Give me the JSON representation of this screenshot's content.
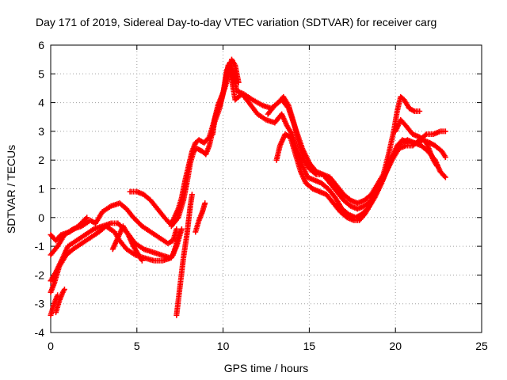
{
  "chart_data": {
    "type": "scatter",
    "title": "Day 171 of 2019, Sidereal Day-to-day VTEC variation (SDTVAR) for receiver carg",
    "xlabel": "GPS time / hours",
    "ylabel": "SDTVAR / TECUs",
    "xlim": [
      0,
      25
    ],
    "ylim": [
      -4,
      6
    ],
    "xticks": [
      0,
      5,
      10,
      15,
      20,
      25
    ],
    "yticks": [
      -4,
      -3,
      -2,
      -1,
      0,
      1,
      2,
      3,
      4,
      5,
      6
    ],
    "grid": true,
    "marker": "+",
    "color": "#ff0000",
    "series": [
      {
        "name": "track-1",
        "points": [
          [
            0.0,
            -1.3
          ],
          [
            0.4,
            -1.0
          ],
          [
            0.8,
            -0.6
          ],
          [
            1.3,
            -0.4
          ],
          [
            1.8,
            -0.3
          ],
          [
            2.3,
            -0.1
          ],
          [
            2.6,
            -0.2
          ],
          [
            3.0,
            0.2
          ],
          [
            3.5,
            0.4
          ],
          [
            4.0,
            0.5
          ],
          [
            4.4,
            0.3
          ],
          [
            4.8,
            0.0
          ],
          [
            5.3,
            -0.3
          ],
          [
            5.8,
            -0.5
          ],
          [
            6.3,
            -0.7
          ],
          [
            6.8,
            -0.9
          ],
          [
            7.1,
            -0.8
          ],
          [
            7.3,
            -0.4
          ]
        ]
      },
      {
        "name": "track-2",
        "points": [
          [
            0.0,
            -2.2
          ],
          [
            0.3,
            -1.9
          ],
          [
            0.7,
            -1.4
          ],
          [
            1.0,
            -1.0
          ],
          [
            1.5,
            -0.8
          ],
          [
            2.0,
            -0.6
          ],
          [
            2.5,
            -0.4
          ],
          [
            3.0,
            -0.3
          ],
          [
            3.5,
            -0.2
          ],
          [
            3.9,
            -0.2
          ],
          [
            4.4,
            -0.5
          ],
          [
            4.9,
            -0.9
          ],
          [
            5.4,
            -1.1
          ],
          [
            5.9,
            -1.2
          ],
          [
            6.4,
            -1.3
          ],
          [
            6.9,
            -1.4
          ],
          [
            7.1,
            -1.3
          ],
          [
            7.3,
            -0.9
          ],
          [
            7.5,
            -0.5
          ]
        ]
      },
      {
        "name": "track-3",
        "points": [
          [
            0.0,
            -2.6
          ],
          [
            0.2,
            -2.3
          ],
          [
            0.5,
            -1.7
          ],
          [
            0.9,
            -1.3
          ],
          [
            1.3,
            -1.1
          ],
          [
            1.8,
            -0.9
          ],
          [
            2.3,
            -0.7
          ],
          [
            2.8,
            -0.5
          ],
          [
            3.2,
            -0.3
          ],
          [
            3.7,
            -0.5
          ],
          [
            4.0,
            -0.8
          ],
          [
            4.4,
            -1.1
          ],
          [
            4.9,
            -1.3
          ],
          [
            5.4,
            -1.4
          ],
          [
            6.0,
            -1.5
          ],
          [
            6.5,
            -1.5
          ],
          [
            7.0,
            -1.4
          ],
          [
            7.3,
            -1.0
          ],
          [
            7.6,
            -0.4
          ]
        ]
      },
      {
        "name": "track-4",
        "points": [
          [
            0.3,
            -3.3
          ],
          [
            0.5,
            -2.9
          ],
          [
            0.7,
            -2.6
          ],
          [
            0.8,
            -2.5
          ]
        ]
      },
      {
        "name": "track-5",
        "points": [
          [
            0.0,
            -3.4
          ],
          [
            0.2,
            -3.0
          ],
          [
            0.4,
            -2.7
          ]
        ]
      },
      {
        "name": "track-6",
        "points": [
          [
            0.0,
            -0.6
          ],
          [
            0.3,
            -0.8
          ],
          [
            0.6,
            -0.6
          ],
          [
            1.1,
            -0.5
          ],
          [
            1.6,
            -0.3
          ],
          [
            2.1,
            0.0
          ]
        ]
      },
      {
        "name": "track-7",
        "points": [
          [
            3.6,
            -1.1
          ],
          [
            3.9,
            -0.7
          ],
          [
            4.2,
            -0.3
          ],
          [
            4.5,
            -0.6
          ],
          [
            4.8,
            -1.0
          ],
          [
            5.1,
            -1.3
          ],
          [
            5.3,
            -1.5
          ]
        ]
      },
      {
        "name": "track-8",
        "points": [
          [
            4.6,
            0.9
          ],
          [
            5.0,
            0.9
          ],
          [
            5.4,
            0.8
          ],
          [
            5.8,
            0.6
          ],
          [
            6.2,
            0.3
          ],
          [
            6.6,
            0.0
          ],
          [
            6.9,
            -0.2
          ],
          [
            7.1,
            -0.1
          ],
          [
            7.4,
            0.3
          ],
          [
            7.6,
            0.7
          ],
          [
            7.8,
            1.3
          ],
          [
            8.0,
            1.8
          ],
          [
            8.2,
            2.3
          ],
          [
            8.4,
            2.6
          ],
          [
            8.6,
            2.7
          ],
          [
            8.9,
            2.6
          ],
          [
            9.2,
            2.8
          ],
          [
            9.4,
            3.2
          ],
          [
            9.6,
            3.6
          ],
          [
            9.8,
            3.9
          ],
          [
            10.0,
            4.3
          ],
          [
            10.2,
            5.1
          ],
          [
            10.4,
            5.4
          ],
          [
            10.6,
            5.0
          ],
          [
            10.8,
            4.4
          ],
          [
            11.2,
            4.3
          ],
          [
            11.7,
            4.1
          ],
          [
            12.3,
            3.9
          ],
          [
            12.8,
            3.8
          ],
          [
            13.2,
            4.0
          ],
          [
            13.5,
            4.2
          ],
          [
            13.8,
            3.9
          ],
          [
            14.1,
            3.3
          ],
          [
            14.4,
            2.6
          ],
          [
            14.7,
            2.0
          ],
          [
            15.0,
            1.7
          ],
          [
            15.4,
            1.5
          ],
          [
            15.8,
            1.5
          ],
          [
            16.2,
            1.4
          ],
          [
            16.6,
            1.1
          ],
          [
            17.0,
            0.8
          ],
          [
            17.4,
            0.6
          ],
          [
            17.8,
            0.5
          ],
          [
            18.2,
            0.6
          ],
          [
            18.6,
            0.8
          ],
          [
            19.0,
            1.2
          ],
          [
            19.4,
            1.6
          ],
          [
            19.8,
            2.1
          ],
          [
            20.1,
            2.5
          ],
          [
            20.4,
            2.7
          ],
          [
            20.8,
            2.6
          ],
          [
            21.2,
            2.6
          ],
          [
            21.6,
            2.7
          ],
          [
            22.0,
            2.6
          ],
          [
            22.3,
            2.5
          ],
          [
            22.7,
            2.3
          ],
          [
            22.9,
            2.1
          ]
        ]
      },
      {
        "name": "track-9",
        "points": [
          [
            7.0,
            -0.3
          ],
          [
            7.4,
            0.0
          ],
          [
            7.7,
            0.6
          ],
          [
            7.9,
            1.2
          ],
          [
            8.1,
            1.9
          ],
          [
            8.3,
            2.3
          ],
          [
            8.5,
            2.4
          ],
          [
            8.8,
            2.3
          ],
          [
            9.0,
            2.2
          ],
          [
            9.2,
            2.5
          ],
          [
            9.5,
            3.3
          ],
          [
            9.8,
            3.8
          ],
          [
            10.1,
            4.6
          ],
          [
            10.3,
            5.3
          ],
          [
            10.5,
            4.8
          ],
          [
            10.7,
            4.1
          ],
          [
            11.1,
            4.3
          ],
          [
            11.5,
            4.0
          ],
          [
            12.0,
            3.6
          ],
          [
            12.5,
            3.4
          ],
          [
            13.0,
            3.3
          ],
          [
            13.4,
            3.6
          ],
          [
            13.7,
            3.2
          ],
          [
            14.0,
            2.9
          ],
          [
            14.3,
            2.3
          ],
          [
            14.6,
            1.8
          ],
          [
            14.9,
            1.4
          ],
          [
            15.3,
            1.3
          ],
          [
            15.7,
            1.2
          ],
          [
            16.1,
            1.0
          ],
          [
            16.5,
            0.7
          ],
          [
            16.9,
            0.3
          ],
          [
            17.3,
            0.1
          ],
          [
            17.7,
            0.0
          ],
          [
            18.0,
            0.1
          ],
          [
            18.4,
            0.3
          ],
          [
            18.8,
            0.7
          ],
          [
            19.2,
            1.2
          ],
          [
            19.6,
            1.8
          ],
          [
            20.0,
            2.3
          ],
          [
            20.3,
            2.6
          ],
          [
            20.7,
            2.7
          ],
          [
            21.1,
            2.6
          ],
          [
            21.5,
            2.5
          ],
          [
            21.9,
            2.3
          ],
          [
            22.3,
            2.0
          ],
          [
            22.6,
            1.6
          ],
          [
            22.9,
            1.4
          ]
        ]
      },
      {
        "name": "track-10",
        "points": [
          [
            13.1,
            2.0
          ],
          [
            13.3,
            2.5
          ],
          [
            13.6,
            2.9
          ],
          [
            13.9,
            2.8
          ],
          [
            14.2,
            2.2
          ],
          [
            14.5,
            1.6
          ],
          [
            14.8,
            1.2
          ],
          [
            15.2,
            1.0
          ],
          [
            15.6,
            0.9
          ],
          [
            16.0,
            0.8
          ],
          [
            16.4,
            0.5
          ],
          [
            16.8,
            0.2
          ],
          [
            17.2,
            0.0
          ],
          [
            17.6,
            -0.1
          ],
          [
            17.9,
            -0.1
          ],
          [
            18.2,
            0.1
          ],
          [
            18.6,
            0.5
          ],
          [
            19.0,
            1.0
          ],
          [
            19.4,
            1.5
          ],
          [
            19.8,
            2.0
          ],
          [
            20.2,
            2.4
          ],
          [
            20.6,
            2.5
          ],
          [
            21.0,
            2.5
          ],
          [
            21.4,
            2.7
          ],
          [
            21.8,
            2.9
          ],
          [
            22.2,
            2.9
          ],
          [
            22.6,
            3.0
          ],
          [
            22.9,
            3.0
          ]
        ]
      },
      {
        "name": "track-11",
        "points": [
          [
            12.6,
            3.6
          ],
          [
            13.0,
            3.9
          ],
          [
            13.4,
            4.1
          ],
          [
            13.8,
            3.8
          ],
          [
            14.2,
            3.1
          ],
          [
            14.6,
            2.4
          ],
          [
            15.0,
            1.9
          ],
          [
            15.4,
            1.6
          ],
          [
            15.8,
            1.5
          ],
          [
            16.2,
            1.2
          ],
          [
            16.6,
            0.9
          ],
          [
            17.0,
            0.6
          ],
          [
            17.4,
            0.4
          ],
          [
            17.8,
            0.3
          ],
          [
            18.2,
            0.4
          ],
          [
            18.6,
            0.6
          ],
          [
            19.0,
            1.0
          ],
          [
            19.3,
            1.5
          ],
          [
            19.6,
            2.2
          ],
          [
            19.9,
            3.0
          ],
          [
            20.1,
            3.7
          ],
          [
            20.3,
            4.2
          ],
          [
            20.5,
            4.1
          ],
          [
            20.8,
            3.8
          ],
          [
            21.1,
            3.7
          ],
          [
            21.4,
            3.7
          ]
        ]
      },
      {
        "name": "track-12",
        "points": [
          [
            20.0,
            3.0
          ],
          [
            20.3,
            3.4
          ],
          [
            20.6,
            3.2
          ],
          [
            21.0,
            2.9
          ],
          [
            21.4,
            2.8
          ],
          [
            21.8,
            2.6
          ],
          [
            22.0,
            2.3
          ],
          [
            22.2,
            2.0
          ],
          [
            22.4,
            1.8
          ]
        ]
      },
      {
        "name": "track-13",
        "points": [
          [
            7.3,
            -3.4
          ],
          [
            7.5,
            -2.4
          ],
          [
            7.7,
            -1.4
          ],
          [
            7.9,
            -0.6
          ],
          [
            8.0,
            -0.1
          ],
          [
            8.1,
            0.4
          ],
          [
            8.2,
            0.8
          ]
        ]
      },
      {
        "name": "track-14",
        "points": [
          [
            8.4,
            -0.5
          ],
          [
            8.6,
            -0.1
          ],
          [
            8.8,
            0.2
          ],
          [
            8.95,
            0.5
          ]
        ]
      },
      {
        "name": "track-15",
        "points": [
          [
            9.4,
            2.9
          ],
          [
            9.5,
            3.4
          ],
          [
            9.7,
            3.9
          ],
          [
            9.9,
            4.2
          ],
          [
            10.1,
            4.5
          ],
          [
            10.3,
            4.9
          ],
          [
            10.5,
            5.5
          ],
          [
            10.7,
            5.3
          ],
          [
            10.9,
            4.7
          ]
        ]
      }
    ]
  }
}
